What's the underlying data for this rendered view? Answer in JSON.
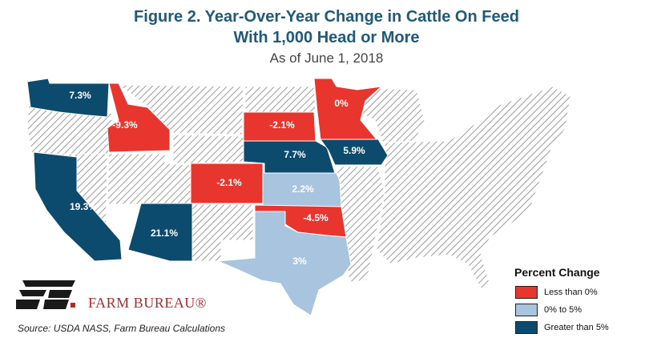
{
  "title_line1": "Figure 2. Year-Over-Year Change in Cattle On Feed",
  "title_line2": "With 1,000 Head or More",
  "subtitle": "As of June 1, 2018",
  "source": "Source: USDA NASS, Farm Bureau Calculations",
  "brand": "FARM BUREAU®",
  "colors": {
    "negative": "#e8362f",
    "low": "#a9c4de",
    "high": "#0d4b6e",
    "hatch": "#9a9a9a"
  },
  "legend": {
    "title": "Percent Change",
    "items": [
      {
        "label": "Less than 0%",
        "color": "#e8362f"
      },
      {
        "label": "0% to 5%",
        "color": "#a9c4de"
      },
      {
        "label": "Greater than 5%",
        "color": "#0d4b6e"
      }
    ]
  },
  "states": {
    "WA": {
      "value": "7.3%",
      "category": "high"
    },
    "ID": {
      "value": "-9.3%",
      "category": "negative"
    },
    "CA": {
      "value": "19.3%",
      "category": "high"
    },
    "AZ": {
      "value": "21.1%",
      "category": "high"
    },
    "CO": {
      "value": "-2.1%",
      "category": "negative"
    },
    "SD": {
      "value": "-2.1%",
      "category": "negative"
    },
    "NE": {
      "value": "7.7%",
      "category": "high"
    },
    "KS": {
      "value": "2.2%",
      "category": "low"
    },
    "OK": {
      "value": "-4.5%",
      "category": "negative"
    },
    "TX": {
      "value": "3%",
      "category": "low"
    },
    "MN": {
      "value": "0%",
      "category": "negative"
    },
    "IA": {
      "value": "5.9%",
      "category": "high"
    }
  }
}
